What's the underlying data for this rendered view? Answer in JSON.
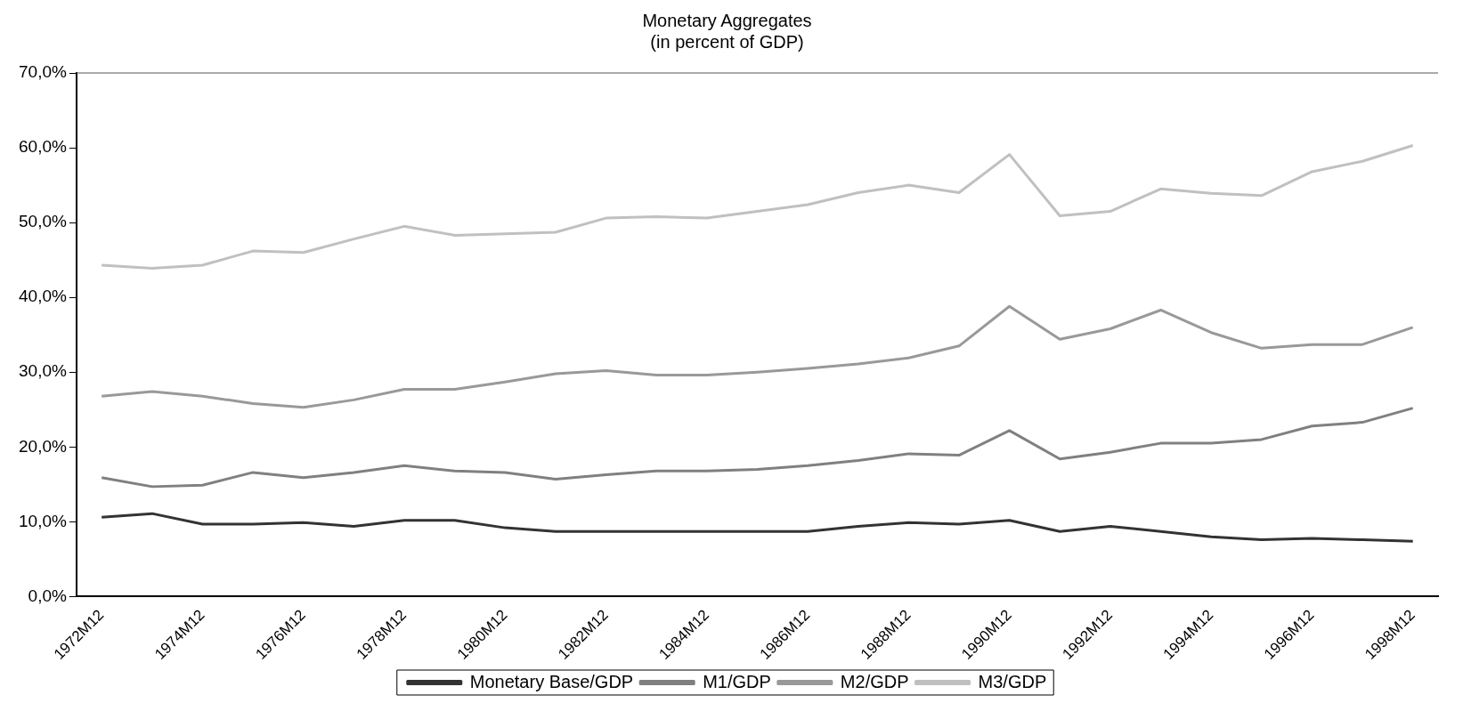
{
  "chart_data": {
    "type": "line",
    "title": [
      "Monetary Aggregates",
      "(in percent of GDP)"
    ],
    "categories": [
      "1972M12",
      null,
      "1974M12",
      null,
      "1976M12",
      null,
      "1978M12",
      null,
      "1980M12",
      null,
      "1982M12",
      null,
      "1984M12",
      null,
      "1986M12",
      null,
      "1988M12",
      null,
      "1990M12",
      null,
      "1992M12",
      null,
      "1994M12",
      null,
      "1996M12",
      null,
      "1998M12"
    ],
    "series": [
      {
        "name": "Monetary Base/GDP",
        "color": "#333333",
        "values": [
          10.6,
          11.1,
          9.7,
          9.7,
          9.9,
          9.4,
          10.2,
          10.2,
          9.2,
          8.7,
          8.7,
          8.7,
          8.7,
          8.7,
          8.7,
          9.4,
          9.9,
          9.7,
          10.2,
          8.7,
          9.4,
          8.7,
          8.0,
          7.6,
          7.8,
          7.6,
          7.4
        ]
      },
      {
        "name": "M1/GDP",
        "color": "#808080",
        "values": [
          15.9,
          14.7,
          14.9,
          16.6,
          15.9,
          16.6,
          17.5,
          16.8,
          16.6,
          15.7,
          16.3,
          16.8,
          16.8,
          17.0,
          17.5,
          18.2,
          19.1,
          18.9,
          22.2,
          18.4,
          19.3,
          20.5,
          20.5,
          21.0,
          22.8,
          23.3,
          25.2
        ]
      },
      {
        "name": "M2/GDP",
        "color": "#999999",
        "values": [
          26.8,
          27.4,
          26.8,
          25.8,
          25.3,
          26.3,
          27.7,
          27.7,
          28.7,
          29.8,
          30.2,
          29.6,
          29.6,
          30.0,
          30.5,
          31.1,
          31.9,
          33.5,
          38.8,
          34.4,
          35.8,
          38.3,
          35.3,
          33.2,
          33.7,
          33.7,
          36.0
        ]
      },
      {
        "name": "M3/GDP",
        "color": "#c0c0c0",
        "values": [
          44.3,
          43.9,
          44.3,
          46.2,
          46.0,
          47.8,
          49.5,
          48.3,
          48.5,
          48.7,
          50.6,
          50.8,
          50.6,
          51.5,
          52.4,
          54.0,
          55.0,
          54.0,
          59.1,
          50.9,
          51.5,
          54.5,
          53.9,
          53.6,
          56.8,
          58.2,
          60.3
        ]
      }
    ],
    "ylim": [
      0,
      70
    ],
    "yticks": [
      {
        "value": 0,
        "label": "0,0%"
      },
      {
        "value": 10,
        "label": "10,0%"
      },
      {
        "value": 20,
        "label": "20,0%"
      },
      {
        "value": 30,
        "label": "30,0%"
      },
      {
        "value": 40,
        "label": "40,0%"
      },
      {
        "value": 50,
        "label": "50,0%"
      },
      {
        "value": 60,
        "label": "60,0%"
      },
      {
        "value": 70,
        "label": "70,0%"
      }
    ],
    "grid": false,
    "legend": "bottom",
    "marker": "none",
    "line_style": "solid"
  }
}
